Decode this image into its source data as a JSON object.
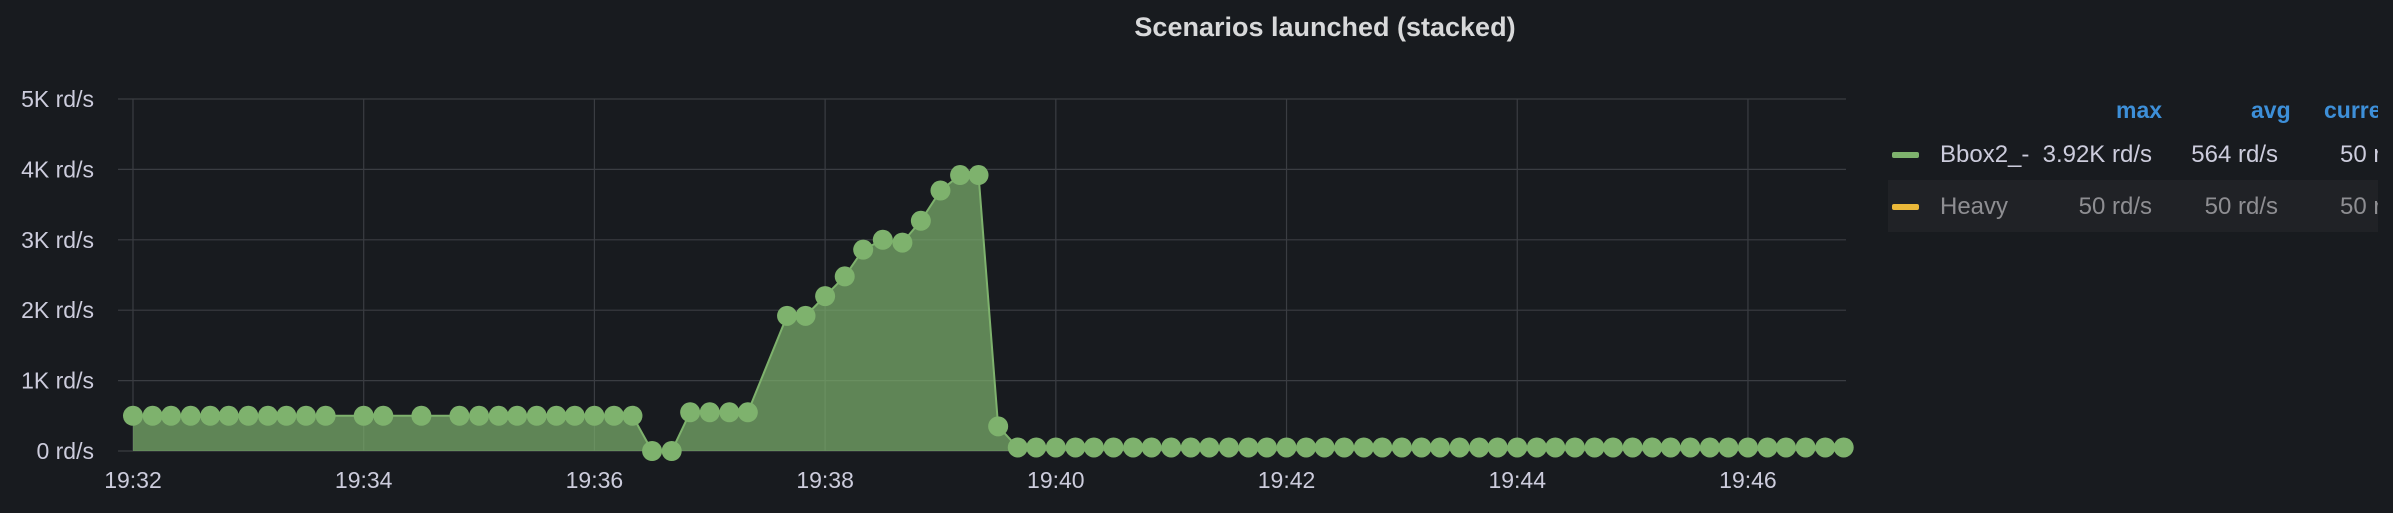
{
  "panel": {
    "title": "Scenarios launched (stacked)"
  },
  "legend": {
    "headers": {
      "max": "max",
      "avg": "avg",
      "current": "curre"
    },
    "rows": [
      {
        "name": "Bbox2_-",
        "color": "#7eb26d",
        "max": "3.92K rd/s",
        "avg": "564 rd/s",
        "current": "50 r"
      },
      {
        "name": "Heavy",
        "color": "#eab839",
        "max": "50 rd/s",
        "avg": "50 rd/s",
        "current": "50 r"
      }
    ]
  },
  "chart_data": {
    "type": "area",
    "stacked": true,
    "grid": true,
    "legend_position": "right",
    "x_unit": "minutes (clock time 19:32 + offset)",
    "xlim": [
      -0.13,
      14.85
    ],
    "ylim": [
      0,
      5000
    ],
    "y_ticks": [
      "0 rd/s",
      "1K rd/s",
      "2K rd/s",
      "3K rd/s",
      "4K rd/s",
      "5K rd/s"
    ],
    "x_ticks": [
      "19:32",
      "19:34",
      "19:36",
      "19:38",
      "19:40",
      "19:42",
      "19:44",
      "19:46"
    ],
    "series": [
      {
        "name": "Bbox2_-",
        "color": "#7eb26d",
        "points": [
          [
            0,
            500
          ],
          [
            0.17,
            500
          ],
          [
            0.33,
            500
          ],
          [
            0.5,
            500
          ],
          [
            0.67,
            500
          ],
          [
            0.83,
            500
          ],
          [
            1,
            500
          ],
          [
            1.17,
            500
          ],
          [
            1.33,
            500
          ],
          [
            1.5,
            500
          ],
          [
            1.67,
            500
          ],
          [
            2,
            500
          ],
          [
            2.17,
            500
          ],
          [
            2.5,
            500
          ],
          [
            2.83,
            500
          ],
          [
            3,
            500
          ],
          [
            3.17,
            500
          ],
          [
            3.33,
            500
          ],
          [
            3.5,
            500
          ],
          [
            3.67,
            500
          ],
          [
            3.83,
            500
          ],
          [
            4,
            500
          ],
          [
            4.17,
            500
          ],
          [
            4.33,
            500
          ],
          [
            4.5,
            0
          ],
          [
            4.67,
            0
          ],
          [
            4.83,
            550
          ],
          [
            5,
            550
          ],
          [
            5.17,
            550
          ],
          [
            5.33,
            550
          ],
          [
            5.67,
            1920
          ],
          [
            5.83,
            1920
          ],
          [
            6,
            2200
          ],
          [
            6.17,
            2480
          ],
          [
            6.33,
            2860
          ],
          [
            6.5,
            3000
          ],
          [
            6.67,
            2960
          ],
          [
            6.83,
            3270
          ],
          [
            7,
            3700
          ],
          [
            7.17,
            3920
          ],
          [
            7.33,
            3920
          ],
          [
            7.5,
            350
          ],
          [
            7.67,
            50
          ],
          [
            7.83,
            50
          ],
          [
            8,
            50
          ],
          [
            8.17,
            50
          ],
          [
            8.33,
            50
          ],
          [
            8.5,
            50
          ],
          [
            8.67,
            50
          ],
          [
            8.83,
            50
          ],
          [
            9,
            50
          ],
          [
            9.17,
            50
          ],
          [
            9.33,
            50
          ],
          [
            9.5,
            50
          ],
          [
            9.67,
            50
          ],
          [
            9.83,
            50
          ],
          [
            10,
            50
          ],
          [
            10.17,
            50
          ],
          [
            10.33,
            50
          ],
          [
            10.5,
            50
          ],
          [
            10.67,
            50
          ],
          [
            10.83,
            50
          ],
          [
            11,
            50
          ],
          [
            11.17,
            50
          ],
          [
            11.33,
            50
          ],
          [
            11.5,
            50
          ],
          [
            11.67,
            50
          ],
          [
            11.83,
            50
          ],
          [
            12,
            50
          ],
          [
            12.17,
            50
          ],
          [
            12.33,
            50
          ],
          [
            12.5,
            50
          ],
          [
            12.67,
            50
          ],
          [
            12.83,
            50
          ],
          [
            13,
            50
          ],
          [
            13.17,
            50
          ],
          [
            13.33,
            50
          ],
          [
            13.5,
            50
          ],
          [
            13.67,
            50
          ],
          [
            13.83,
            50
          ],
          [
            14,
            50
          ],
          [
            14.17,
            50
          ],
          [
            14.33,
            50
          ],
          [
            14.5,
            50
          ],
          [
            14.67,
            50
          ],
          [
            14.83,
            50
          ]
        ]
      }
    ]
  }
}
